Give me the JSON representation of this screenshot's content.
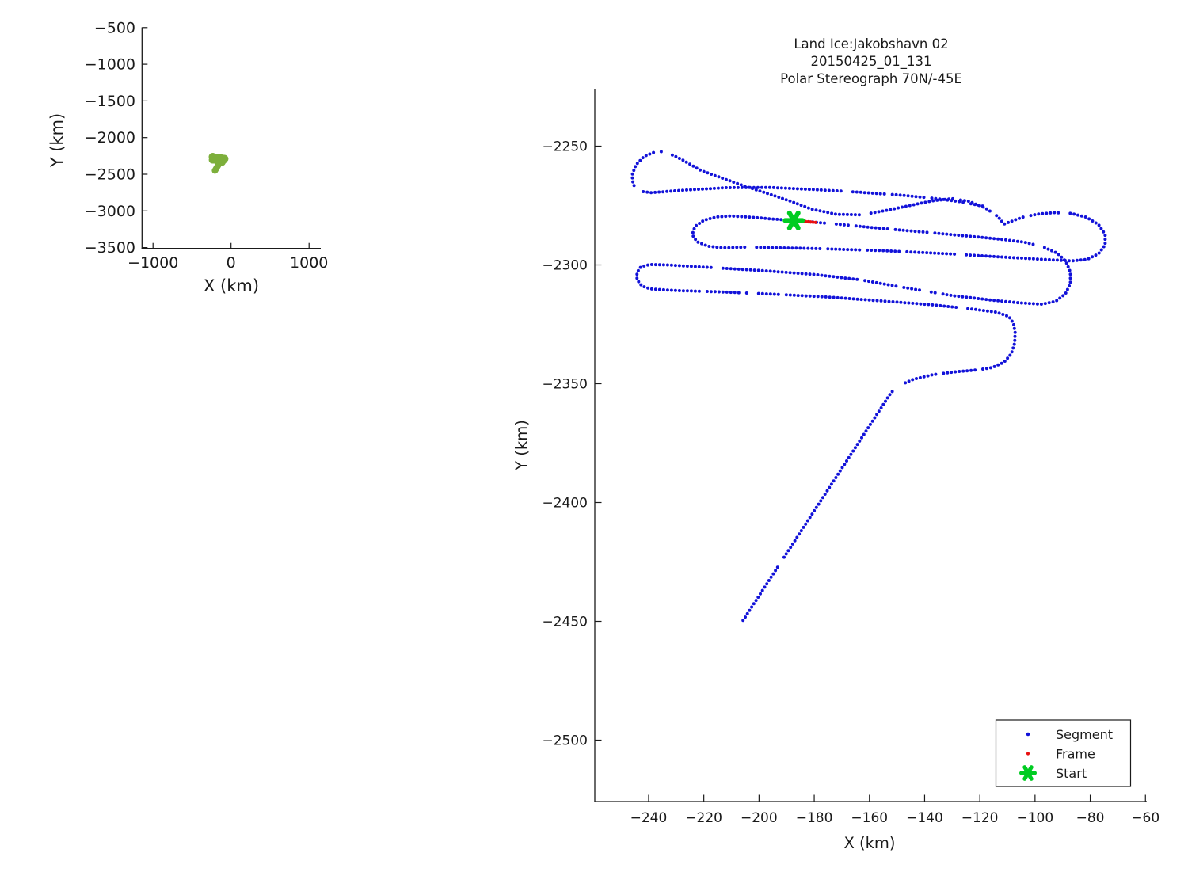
{
  "chart_data": [
    {
      "type": "line",
      "role": "overview-map",
      "xlabel": "X (km)",
      "ylabel": "Y (km)",
      "xticks": [
        -1000,
        0,
        1000
      ],
      "yticks": [
        -500,
        -1000,
        -1500,
        -2000,
        -2500,
        -3000,
        -3500
      ],
      "xlim": [
        -1140,
        1150
      ],
      "ylim": [
        -3510,
        -490
      ],
      "grid": false,
      "track_color": "#7DAF3B",
      "track": "same-as-main-segment-track"
    },
    {
      "type": "scatter",
      "role": "flight-track",
      "title_lines": [
        "Land Ice:Jakobshavn 02",
        "20150425_01_131",
        "Polar Stereograph 70N/-45E"
      ],
      "xlabel": "X (km)",
      "ylabel": "Y (km)",
      "xticks": [
        -240,
        -220,
        -200,
        -180,
        -160,
        -140,
        -120,
        -100,
        -80,
        -60
      ],
      "yticks": [
        -2250,
        -2300,
        -2350,
        -2400,
        -2450,
        -2500
      ],
      "xlim": [
        -259.3,
        -59.1
      ],
      "ylim": [
        -2526,
        -2226.3
      ],
      "grid": false,
      "legend": [
        {
          "label": "Segment",
          "marker": "dot",
          "color": "#1212D9"
        },
        {
          "label": "Frame",
          "marker": "dot",
          "color": "#E81010"
        },
        {
          "label": "Start",
          "marker": "star",
          "color": "#00CC22"
        }
      ],
      "legend_position": "bottom-right",
      "series": {
        "segment_track_km": [
          [
            [
              -234,
              -2252.3
            ],
            [
              -228,
              -2255.6
            ],
            [
              -221,
              -2260.3
            ],
            [
              -213,
              -2263.6
            ],
            [
              -205,
              -2266.9
            ],
            [
              -197,
              -2269.9
            ],
            [
              -189,
              -2273.0
            ],
            [
              -181,
              -2276.5
            ],
            [
              -172,
              -2278.7
            ],
            [
              -163,
              -2278.9
            ],
            [
              -154,
              -2277.1
            ],
            [
              -145,
              -2274.9
            ],
            [
              -137,
              -2273.0
            ],
            [
              -130,
              -2272.1
            ],
            [
              -124,
              -2273.2
            ],
            [
              -118,
              -2276.0
            ],
            [
              -113.5,
              -2279.6
            ],
            [
              -111.2,
              -2282.8
            ],
            [
              -108.5,
              -2281.6
            ],
            [
              -104.5,
              -2279.9
            ],
            [
              -99,
              -2278.6
            ],
            [
              -93,
              -2278.0
            ],
            [
              -87,
              -2278.3
            ],
            [
              -81.5,
              -2279.9
            ],
            [
              -77,
              -2283.0
            ],
            [
              -74.6,
              -2287.2
            ],
            [
              -74.6,
              -2291.6
            ],
            [
              -77,
              -2295.3
            ],
            [
              -81,
              -2297.6
            ],
            [
              -86.5,
              -2298.3
            ],
            [
              -95,
              -2297.8
            ],
            [
              -110,
              -2296.8
            ],
            [
              -130,
              -2295.4
            ],
            [
              -155,
              -2294.0
            ],
            [
              -180,
              -2293.1
            ],
            [
              -205,
              -2292.5
            ],
            [
              -213,
              -2292.8
            ],
            [
              -218.5,
              -2292.1
            ],
            [
              -222.5,
              -2290.2
            ],
            [
              -224.2,
              -2287.2
            ],
            [
              -223.2,
              -2283.8
            ],
            [
              -220,
              -2281.2
            ],
            [
              -215.5,
              -2279.8
            ],
            [
              -210,
              -2279.4
            ],
            [
              -203,
              -2279.9
            ],
            [
              -196,
              -2280.6
            ],
            [
              -187.4,
              -2281.3
            ],
            [
              -181,
              -2281.9
            ],
            [
              -173,
              -2282.7
            ],
            [
              -163,
              -2283.8
            ],
            [
              -151,
              -2285.1
            ],
            [
              -138,
              -2286.4
            ],
            [
              -125,
              -2287.8
            ],
            [
              -113,
              -2289.1
            ],
            [
              -104,
              -2290.4
            ],
            [
              -97.5,
              -2292.2
            ],
            [
              -92,
              -2295.0
            ],
            [
              -88.8,
              -2298.6
            ],
            [
              -87.2,
              -2303.0
            ],
            [
              -87.2,
              -2307.8
            ],
            [
              -89,
              -2312.2
            ],
            [
              -92.5,
              -2315.3
            ],
            [
              -97.5,
              -2316.5
            ],
            [
              -105,
              -2316.0
            ],
            [
              -115,
              -2314.9
            ],
            [
              -130,
              -2312.9
            ],
            [
              -147,
              -2309.6
            ],
            [
              -163,
              -2306.3
            ],
            [
              -180,
              -2304.0
            ],
            [
              -200,
              -2302.3
            ],
            [
              -220,
              -2300.9
            ],
            [
              -233,
              -2300.0
            ],
            [
              -239.5,
              -2299.8
            ],
            [
              -242.8,
              -2300.8
            ],
            [
              -244.2,
              -2303.2
            ],
            [
              -244.2,
              -2306.2
            ],
            [
              -242.5,
              -2308.8
            ],
            [
              -239.5,
              -2310.1
            ],
            [
              -230,
              -2310.8
            ],
            [
              -215,
              -2311.3
            ],
            [
              -195,
              -2312.3
            ],
            [
              -175,
              -2313.5
            ],
            [
              -155,
              -2315.2
            ],
            [
              -138,
              -2316.7
            ],
            [
              -124,
              -2318.4
            ],
            [
              -114,
              -2319.9
            ],
            [
              -109.5,
              -2321.7
            ],
            [
              -107.8,
              -2324.6
            ],
            [
              -107.2,
              -2328.6
            ],
            [
              -107.4,
              -2333.0
            ],
            [
              -108.6,
              -2337.4
            ],
            [
              -111.3,
              -2341.0
            ],
            [
              -115.5,
              -2343.2
            ],
            [
              -121,
              -2344.2
            ],
            [
              -129,
              -2345.0
            ],
            [
              -137,
              -2346.2
            ],
            [
              -144,
              -2348.1
            ],
            [
              -149.3,
              -2350.8
            ],
            [
              -152.2,
              -2353.8
            ],
            [
              -206,
              -2450.0
            ]
          ],
          [
            [
              -119,
              -2275.2
            ],
            [
              -127,
              -2273.4
            ],
            [
              -137,
              -2271.9
            ],
            [
              -150,
              -2270.5
            ],
            [
              -165,
              -2269.3
            ],
            [
              -180,
              -2268.3
            ],
            [
              -196,
              -2267.4
            ],
            [
              -212,
              -2267.5
            ],
            [
              -228,
              -2268.6
            ],
            [
              -239,
              -2269.6
            ],
            [
              -243.6,
              -2268.9
            ],
            [
              -245.6,
              -2266.1
            ],
            [
              -246,
              -2262.2
            ],
            [
              -244.6,
              -2257.9
            ],
            [
              -241.6,
              -2254.3
            ],
            [
              -237.6,
              -2252.4
            ],
            [
              -234,
              -2252.3
            ]
          ]
        ],
        "frame_segment_km": [
          [
            -185.8,
            -2281.5
          ],
          [
            -179.5,
            -2282.1
          ]
        ],
        "start_point_km": [
          -187.4,
          -2281.3
        ]
      }
    }
  ]
}
